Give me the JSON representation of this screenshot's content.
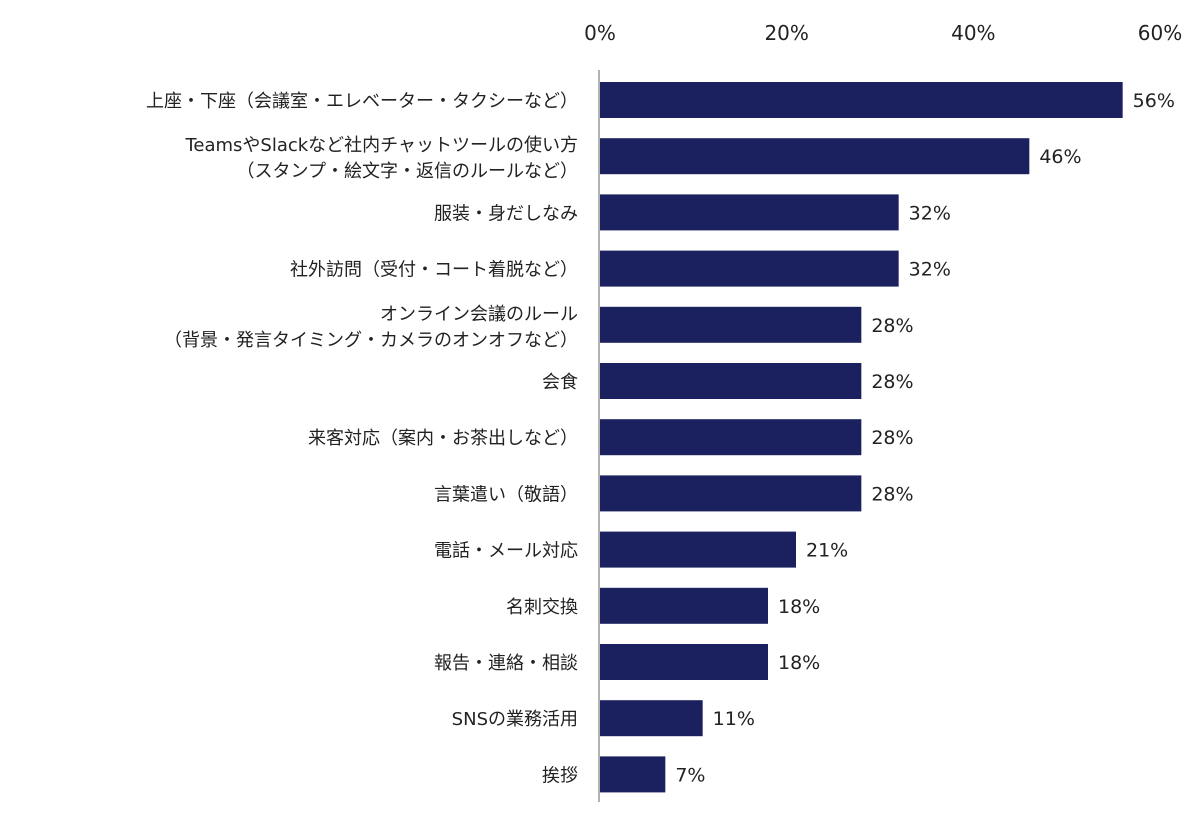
{
  "chart_data": {
    "type": "bar",
    "orientation": "horizontal",
    "categories": [
      [
        "上座・下座（会議室・エレベーター・タクシーなど）"
      ],
      [
        "TeamsやSlackなど社内チャットツールの使い方",
        "（スタンプ・絵文字・返信のルールなど）"
      ],
      [
        "服装・身だしなみ"
      ],
      [
        "社外訪問（受付・コート着脱など）"
      ],
      [
        "オンライン会議のルール",
        "（背景・発言タイミング・カメラのオンオフなど）"
      ],
      [
        "会食"
      ],
      [
        "来客対応（案内・お茶出しなど）"
      ],
      [
        "言葉遣い（敬語）"
      ],
      [
        "電話・メール対応"
      ],
      [
        "名刺交換"
      ],
      [
        "報告・連絡・相談"
      ],
      [
        "SNSの業務活用"
      ],
      [
        "挨拶"
      ]
    ],
    "values": [
      56,
      46,
      32,
      32,
      28,
      28,
      28,
      28,
      21,
      18,
      18,
      11,
      7
    ],
    "data_labels": [
      "56%",
      "46%",
      "32%",
      "32%",
      "28%",
      "28%",
      "28%",
      "28%",
      "21%",
      "18%",
      "18%",
      "11%",
      "7%"
    ],
    "xlim": [
      0,
      60
    ],
    "x_ticks": [
      "0%",
      "20%",
      "40%",
      "60%"
    ],
    "x_tick_values": [
      0,
      20,
      40,
      60
    ],
    "x_axis_position": "top",
    "grid": false,
    "bar_color": "#1b205e",
    "title": "",
    "xlabel": "",
    "ylabel": ""
  }
}
